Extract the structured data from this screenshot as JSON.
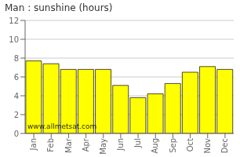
{
  "chart_data": {
    "type": "bar",
    "title": "Man : sunshine (hours)",
    "categories": [
      "Jan",
      "Feb",
      "Mar",
      "Apr",
      "May",
      "Jun",
      "Jul",
      "Aug",
      "Sep",
      "Oct",
      "Nov",
      "Dec"
    ],
    "values": [
      7.7,
      7.4,
      6.8,
      6.8,
      6.8,
      5.1,
      3.8,
      4.2,
      5.3,
      6.5,
      7.1,
      6.8
    ],
    "color": "#ffff00",
    "ylim": [
      0,
      12
    ],
    "yticks": [
      0,
      2,
      4,
      6,
      8,
      10,
      12
    ],
    "grid": true,
    "annotations": [
      "www.allmetsat.com"
    ]
  }
}
